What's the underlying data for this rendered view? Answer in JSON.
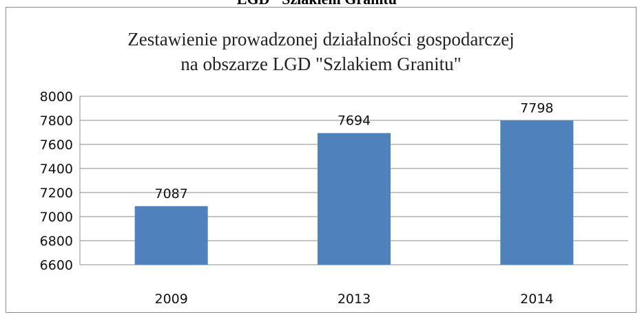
{
  "caption": "LGD \"Szlakiem Granitu\"",
  "chart_data": {
    "type": "bar",
    "title_line1": "Zestawienie prowadzonej działalności gospodarczej",
    "title_line2": "na obszarze LGD \"Szlakiem Granitu\"",
    "categories": [
      "2009",
      "2013",
      "2014"
    ],
    "values": [
      7087,
      7694,
      7798
    ],
    "data_labels": [
      "7087",
      "7694",
      "7798"
    ],
    "ylim": [
      6600,
      8000
    ],
    "yticks": [
      6600,
      6800,
      7000,
      7200,
      7400,
      7600,
      7800,
      8000
    ],
    "ytick_labels": [
      "6600",
      "6800",
      "7000",
      "7200",
      "7400",
      "7600",
      "7800",
      "8000"
    ],
    "grid": true,
    "legend": "none",
    "bar_color": "#4f81bd",
    "grid_color": "#8c8c8c"
  }
}
